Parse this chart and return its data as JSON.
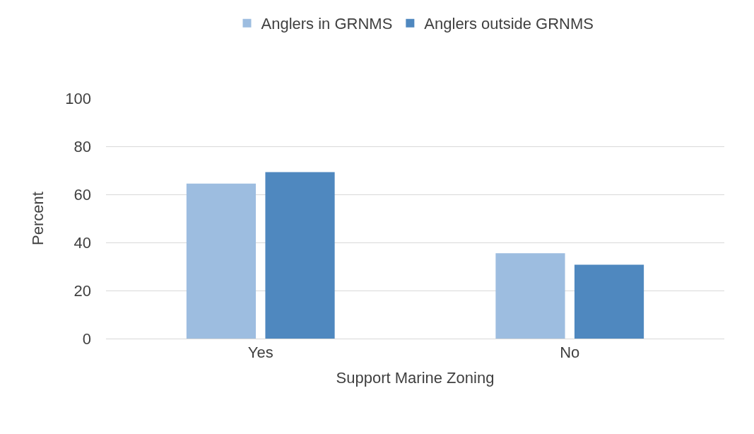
{
  "chart_data": {
    "type": "bar",
    "xlabel": "Support Marine Zoning",
    "ylabel": "Percent",
    "categories": [
      "Yes",
      "No"
    ],
    "series": [
      {
        "name": "Anglers in GRNMS",
        "color": "#9dbde0",
        "values": [
          64.5,
          35.5
        ]
      },
      {
        "name": "Anglers outside GRNMS",
        "color": "#4f88bf",
        "values": [
          69.3,
          30.7
        ]
      }
    ],
    "ylim": [
      0,
      100
    ],
    "yticks": [
      0,
      20,
      40,
      60,
      80,
      100
    ],
    "grid": "y",
    "legend": "top"
  }
}
